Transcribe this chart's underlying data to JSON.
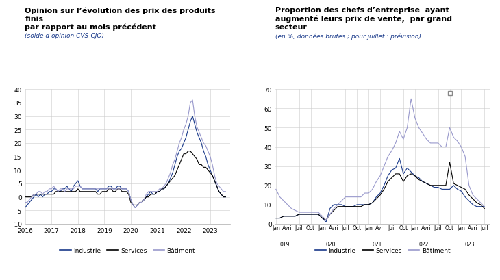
{
  "chart1": {
    "title_line1": "Opinion sur l’évolution des prix des produits",
    "title_line2": "finis",
    "title_line3": "par rapport au mois précédent",
    "subtitle": "(solde d’opinion CVS-CJO)",
    "ylim": [
      -10,
      40
    ],
    "yticks": [
      -10,
      -5,
      0,
      5,
      10,
      15,
      20,
      25,
      30,
      35,
      40
    ],
    "xticks": [
      2016,
      2017,
      2018,
      2019,
      2020,
      2021,
      2022,
      2023
    ],
    "xlim": [
      2016,
      2023.75
    ],
    "color_industrie": "#1a3a8a",
    "color_services": "#000000",
    "color_batiment": "#9999cc"
  },
  "chart2": {
    "title_line1": "Proportion des chefs d’entreprise  ayant",
    "title_line2": "augmenté leurs prix de vente,  par grand",
    "title_line3": "secteur",
    "subtitle": "(en %, données brutes ; pour juillet : prévision)",
    "ylim": [
      0,
      70
    ],
    "yticks": [
      0,
      10,
      20,
      30,
      40,
      50,
      60,
      70
    ],
    "color_industrie": "#1a3a8a",
    "color_services": "#000000",
    "color_batiment": "#9999cc"
  },
  "legend_industrie": "Industrie",
  "legend_services": "Services",
  "legend_batiment": "Bâtiment"
}
